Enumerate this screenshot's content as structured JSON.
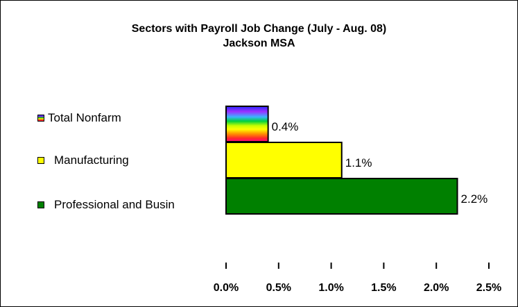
{
  "chart_data": {
    "type": "bar",
    "orientation": "horizontal",
    "title": "Sectors with Payroll Job Change (July - Aug. 08)",
    "subtitle": "Jackson MSA",
    "categories": [
      "Total Nonfarm",
      "Manufacturing",
      "Professional and Busin"
    ],
    "series": [
      {
        "values": [
          0.4,
          1.1,
          2.2
        ]
      }
    ],
    "data_labels": [
      "0.4%",
      "1.1%",
      "2.2%"
    ],
    "bar_colors": [
      "rainbow-gradient",
      "#FFFF00",
      "#008000"
    ],
    "xlim": [
      0,
      2.5
    ],
    "x_ticks": [
      0,
      0.5,
      1.0,
      1.5,
      2.0,
      2.5
    ],
    "x_tick_labels": [
      "0.0%",
      "0.5%",
      "1.0%",
      "1.5%",
      "2.0%",
      "2.5%"
    ],
    "grid": false,
    "legend_position": "left"
  }
}
